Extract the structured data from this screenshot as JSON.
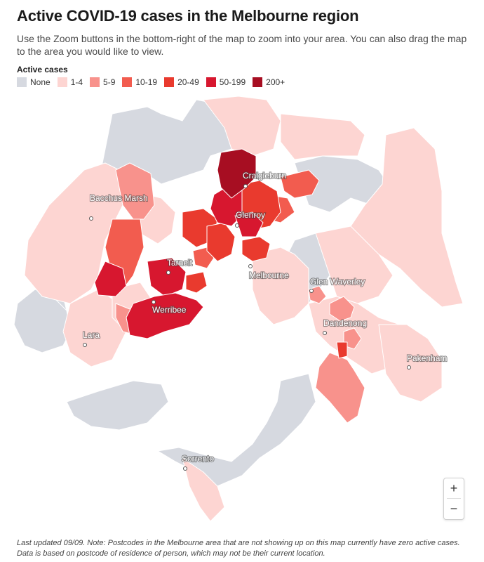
{
  "title": "Active COVID-19 cases in the Melbourne region",
  "subtitle": "Use the Zoom buttons in the bottom-right of the map to zoom into your area. You can also drag the map to the area you would like to view.",
  "legend": {
    "title": "Active cases",
    "items": [
      {
        "label": "None",
        "color": "#d6d9e0"
      },
      {
        "label": "1-4",
        "color": "#fdd5d2"
      },
      {
        "label": "5-9",
        "color": "#f8928c"
      },
      {
        "label": "10-19",
        "color": "#f25c4f"
      },
      {
        "label": "20-49",
        "color": "#e93a2e"
      },
      {
        "label": "50-199",
        "color": "#d7172f"
      },
      {
        "label": "200+",
        "color": "#a70e22"
      }
    ]
  },
  "places": [
    {
      "name": "Craigieburn"
    },
    {
      "name": "Bacchus Marsh"
    },
    {
      "name": "Glenroy"
    },
    {
      "name": "Tarneit"
    },
    {
      "name": "Melbourne"
    },
    {
      "name": "Glen Waverley"
    },
    {
      "name": "Werribee"
    },
    {
      "name": "Dandenong"
    },
    {
      "name": "Lara"
    },
    {
      "name": "Pakenham"
    },
    {
      "name": "Sorrento"
    }
  ],
  "zoom": {
    "in_label": "+",
    "out_label": "−"
  },
  "footnote": "Last updated 09/09. Note: Postcodes in the Melbourne area that are not showing up on this map currently have zero active cases. Data is based on postcode of residence of person, which may not be their current location."
}
